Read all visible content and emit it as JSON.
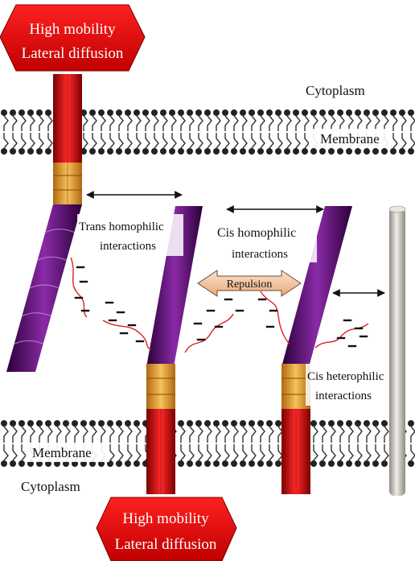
{
  "badges": {
    "top": {
      "line1": "High mobility",
      "line2": "Lateral diffusion"
    },
    "bottom": {
      "line1": "High mobility",
      "line2": "Lateral diffusion"
    }
  },
  "labels": {
    "cytoplasm_top": "Cytoplasm",
    "membrane_top": "Membrane",
    "membrane_bottom": "Membrane",
    "cytoplasm_bottom": "Cytoplasm",
    "trans_line1": "Trans homophilic",
    "trans_line2": "interactions",
    "cis_homo_line1": "Cis homophilic",
    "cis_homo_line2": "interactions",
    "repulsion": "Repulsion",
    "cis_hetero_line1": "Cis heterophilic",
    "cis_hetero_line2": "interactions"
  },
  "colors": {
    "badge_red": "#e01010",
    "cadherin_purple": "#5a0a6e",
    "juxta_orange": "#e8a83a",
    "transmembrane_red": "#d01818",
    "lipid_head": "#222222",
    "repulsion_fill": "#f4c9a8",
    "rod_gray": "#c9c6bd",
    "tail_red": "#e02020"
  }
}
